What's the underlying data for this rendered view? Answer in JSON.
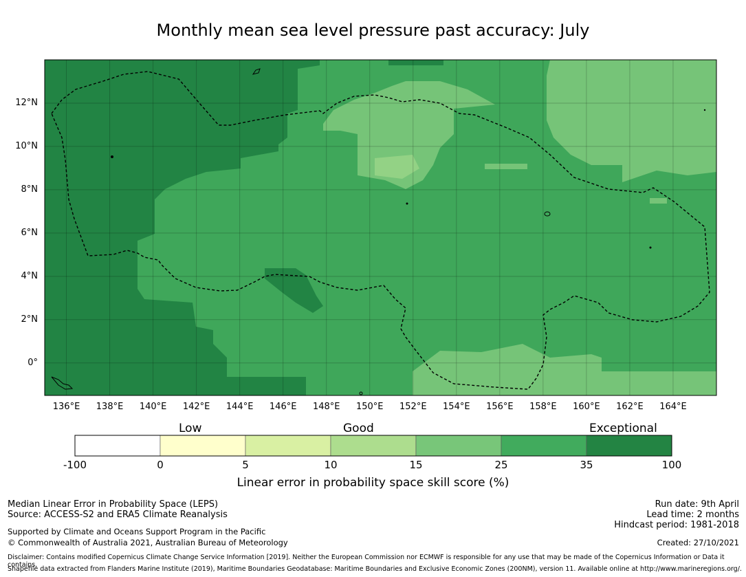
{
  "title": "Monthly mean sea level pressure past accuracy: July",
  "map": {
    "lon_ticks": [
      "136°E",
      "138°E",
      "140°E",
      "142°E",
      "144°E",
      "146°E",
      "148°E",
      "150°E",
      "152°E",
      "154°E",
      "156°E",
      "158°E",
      "160°E",
      "162°E",
      "164°E"
    ],
    "lat_ticks": [
      "12°N",
      "10°N",
      "8°N",
      "6°N",
      "4°N",
      "2°N",
      "0°"
    ],
    "lon_range": [
      135,
      166
    ],
    "lat_range": [
      -1.5,
      14
    ],
    "colors": {
      "exceptional": "#228444",
      "good_high": "#3fa75a",
      "good_mid": "#76c478",
      "good_low": "#acdf8f",
      "coast": "#000000",
      "eez_boundary": "#000000"
    }
  },
  "colorbar": {
    "category_labels": [
      "Low",
      "Good",
      "Exceptional"
    ],
    "tick_labels": [
      "-100",
      "0",
      "5",
      "10",
      "15",
      "25",
      "35",
      "100"
    ],
    "segment_colors": [
      "#ffffff",
      "#ffffcc",
      "#d9f0a3",
      "#addd8e",
      "#78c679",
      "#41ab5d",
      "#238443"
    ],
    "title": "Linear error in probability space skill score (%)"
  },
  "footer": {
    "left": {
      "line1": "Median Linear Error in Probability Space (LEPS)",
      "line2": "Source: ACCESS-S2 and ERA5 Climate Reanalysis",
      "line3": "Supported by Climate and Oceans Support Program in the Pacific",
      "line4": "© Commonwealth of Australia 2021, Australian Bureau of Meteorology"
    },
    "right": {
      "run_date": "Run date: 9th April",
      "lead_time": "Lead time: 2 months",
      "hindcast": "Hindcast period: 1981-2018",
      "created": "Created: 27/10/2021"
    },
    "disclaimer": "Disclaimer: Contains modified Copernicus Climate Change Service Information [2019]. Neither the European Commission nor ECMWF is responsible for any use that may be made of the Copernicus Information or Data it contains.",
    "shapefile": "Shapefile data extracted from Flanders Marine Institute (2019), Maritime Boundaries Geodatabase: Maritime Boundaries and Exclusive Economic Zones (200NM), version 11. Available online at http://www.marineregions.org/."
  }
}
